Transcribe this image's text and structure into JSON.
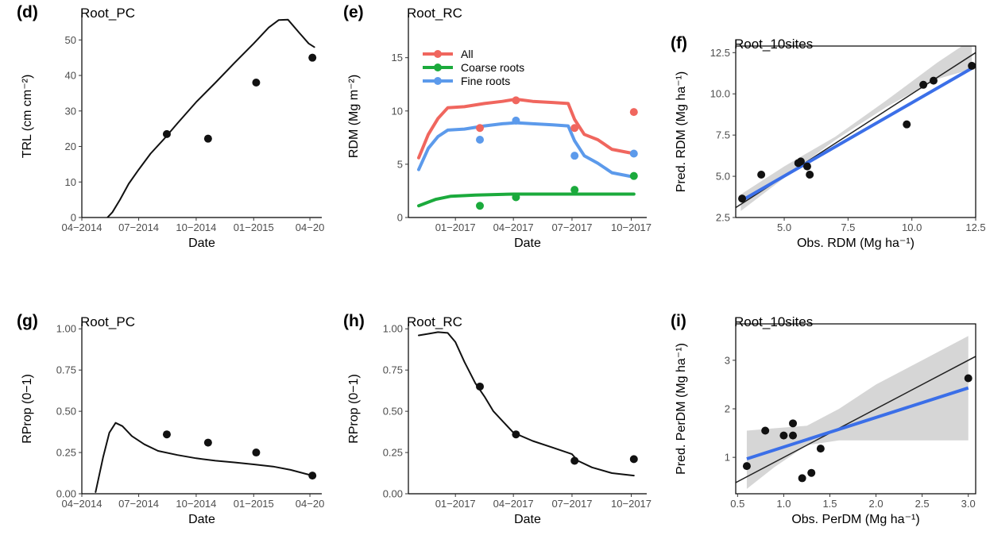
{
  "colors": {
    "all": "#F0665E",
    "coarse": "#1BAA3C",
    "fine": "#5C9AEB",
    "fit": "#3B6FE8",
    "ribbon": "#D6D6D6",
    "model": "#111111",
    "obs": "#111111"
  },
  "chart_data": [
    {
      "id": "d",
      "panel_label": "(d)",
      "title": "Root_PC",
      "type": "line",
      "xlabel": "Date",
      "ylabel": "TRL (cm cm⁻²)",
      "xaxis": "date",
      "xlim": [
        "2014-04-01",
        "2015-04-20"
      ],
      "ylim": [
        0,
        57
      ],
      "x_ticks": [
        {
          "value": "2014-04-01",
          "label": "04−2014"
        },
        {
          "value": "2014-07-01",
          "label": "07−2014"
        },
        {
          "value": "2014-10-01",
          "label": "10−2014"
        },
        {
          "value": "2015-01-01",
          "label": "01−2015"
        },
        {
          "value": "2015-04-01",
          "label": "04−20"
        }
      ],
      "y_ticks": [
        0,
        10,
        20,
        30,
        40,
        50
      ],
      "series": [
        {
          "kind": "line",
          "color_key": "model",
          "points": [
            [
              "2014-05-12",
              0
            ],
            [
              "2014-05-20",
              1.5
            ],
            [
              "2014-06-01",
              5
            ],
            [
              "2014-06-15",
              9.5
            ],
            [
              "2014-07-01",
              13.5
            ],
            [
              "2014-07-20",
              18
            ],
            [
              "2014-08-10",
              22
            ],
            [
              "2014-09-01",
              26.5
            ],
            [
              "2014-10-01",
              32.5
            ],
            [
              "2014-11-01",
              38
            ],
            [
              "2014-12-01",
              43.5
            ],
            [
              "2015-01-01",
              49
            ],
            [
              "2015-01-25",
              53.5
            ],
            [
              "2015-02-10",
              55.6
            ],
            [
              "2015-02-25",
              55.7
            ],
            [
              "2015-03-15",
              52
            ],
            [
              "2015-03-30",
              49
            ],
            [
              "2015-04-08",
              48
            ]
          ]
        },
        {
          "kind": "points",
          "color_key": "obs",
          "points": [
            [
              "2014-08-15",
              23.5
            ],
            [
              "2014-10-20",
              22.2
            ],
            [
              "2015-01-05",
              38
            ],
            [
              "2015-04-05",
              45
            ]
          ]
        }
      ]
    },
    {
      "id": "e",
      "panel_label": "(e)",
      "title": "Root_RC",
      "type": "line",
      "xlabel": "Date",
      "ylabel": "RDM (Mg m⁻²)",
      "xaxis": "date",
      "xlim": [
        "2016-10-20",
        "2017-10-25"
      ],
      "ylim": [
        0,
        19
      ],
      "x_ticks": [
        {
          "value": "2017-01-01",
          "label": "01−2017"
        },
        {
          "value": "2017-04-01",
          "label": "04−2017"
        },
        {
          "value": "2017-07-01",
          "label": "07−2017"
        },
        {
          "value": "2017-10-01",
          "label": "10−2017"
        }
      ],
      "y_ticks": [
        0,
        5,
        10,
        15
      ],
      "legend": [
        {
          "name": "All",
          "color_key": "all"
        },
        {
          "name": "Coarse roots",
          "color_key": "coarse"
        },
        {
          "name": "Fine roots",
          "color_key": "fine"
        }
      ],
      "series": [
        {
          "kind": "line",
          "color_key": "all",
          "width": 4,
          "points": [
            [
              "2016-11-05",
              5.6
            ],
            [
              "2016-11-20",
              7.8
            ],
            [
              "2016-12-05",
              9.3
            ],
            [
              "2016-12-20",
              10.3
            ],
            [
              "2017-01-15",
              10.4
            ],
            [
              "2017-02-15",
              10.7
            ],
            [
              "2017-03-15",
              10.9
            ],
            [
              "2017-04-05",
              11.1
            ],
            [
              "2017-05-01",
              10.9
            ],
            [
              "2017-06-01",
              10.8
            ],
            [
              "2017-06-25",
              10.7
            ],
            [
              "2017-07-05",
              9.2
            ],
            [
              "2017-07-20",
              7.8
            ],
            [
              "2017-08-10",
              7.3
            ],
            [
              "2017-09-01",
              6.4
            ],
            [
              "2017-10-05",
              6
            ]
          ]
        },
        {
          "kind": "line",
          "color_key": "fine",
          "width": 4,
          "points": [
            [
              "2016-11-05",
              4.5
            ],
            [
              "2016-11-20",
              6.5
            ],
            [
              "2016-12-05",
              7.6
            ],
            [
              "2016-12-20",
              8.2
            ],
            [
              "2017-01-15",
              8.3
            ],
            [
              "2017-02-15",
              8.6
            ],
            [
              "2017-03-15",
              8.8
            ],
            [
              "2017-04-05",
              8.9
            ],
            [
              "2017-05-01",
              8.8
            ],
            [
              "2017-06-01",
              8.7
            ],
            [
              "2017-06-25",
              8.6
            ],
            [
              "2017-07-05",
              7.2
            ],
            [
              "2017-07-20",
              5.8
            ],
            [
              "2017-08-10",
              5.1
            ],
            [
              "2017-09-01",
              4.2
            ],
            [
              "2017-10-05",
              3.8
            ]
          ]
        },
        {
          "kind": "line",
          "color_key": "coarse",
          "width": 4,
          "points": [
            [
              "2016-11-05",
              1.1
            ],
            [
              "2016-12-01",
              1.7
            ],
            [
              "2016-12-25",
              2.0
            ],
            [
              "2017-02-01",
              2.1
            ],
            [
              "2017-04-01",
              2.2
            ],
            [
              "2017-07-01",
              2.2
            ],
            [
              "2017-10-05",
              2.2
            ]
          ]
        },
        {
          "kind": "points",
          "color_key": "all",
          "points": [
            [
              "2017-02-08",
              8.4
            ],
            [
              "2017-04-05",
              11
            ],
            [
              "2017-07-05",
              8.4
            ],
            [
              "2017-10-05",
              9.9
            ]
          ]
        },
        {
          "kind": "points",
          "color_key": "fine",
          "points": [
            [
              "2017-02-08",
              7.3
            ],
            [
              "2017-04-05",
              9.1
            ],
            [
              "2017-07-05",
              5.8
            ],
            [
              "2017-10-05",
              6
            ]
          ]
        },
        {
          "kind": "points",
          "color_key": "coarse",
          "points": [
            [
              "2017-02-08",
              1.1
            ],
            [
              "2017-04-05",
              1.9
            ],
            [
              "2017-07-05",
              2.6
            ],
            [
              "2017-10-05",
              3.9
            ]
          ]
        }
      ]
    },
    {
      "id": "f",
      "panel_label": "(f)",
      "title": "Root_10sites",
      "type": "scatter",
      "xlabel": "Obs. RDM (Mg ha⁻¹)",
      "ylabel": "Pred. RDM (Mg ha⁻¹)",
      "xaxis": "num",
      "xlim": [
        3.1,
        12.5
      ],
      "ylim": [
        2.5,
        12.9
      ],
      "x_ticks": [
        {
          "value": 5,
          "label": "5.0"
        },
        {
          "value": 7.5,
          "label": "7.5"
        },
        {
          "value": 10,
          "label": "10.0"
        },
        {
          "value": 12.5,
          "label": "12.5"
        }
      ],
      "y_ticks": [
        {
          "value": 2.5,
          "label": "2.5"
        },
        {
          "value": 5,
          "label": "5.0"
        },
        {
          "value": 7.5,
          "label": "7.5"
        },
        {
          "value": 10,
          "label": "10.0"
        },
        {
          "value": 12.5,
          "label": "12.5"
        }
      ],
      "ribbon": [
        [
          3.3,
          3.9,
          2.9
        ],
        [
          5.0,
          5.6,
          4.9
        ],
        [
          7.0,
          7.4,
          7.2
        ],
        [
          9.0,
          9.6,
          9.2
        ],
        [
          11.0,
          11.9,
          10.9
        ],
        [
          12.35,
          13.3,
          11.5
        ]
      ],
      "reference_line": [
        [
          3.1,
          3.1
        ],
        [
          12.5,
          12.5
        ]
      ],
      "fit_line": [
        [
          3.3,
          3.5
        ],
        [
          12.35,
          11.55
        ]
      ],
      "points": [
        [
          3.35,
          3.65
        ],
        [
          4.1,
          5.1
        ],
        [
          5.55,
          5.8
        ],
        [
          5.65,
          5.9
        ],
        [
          5.9,
          5.6
        ],
        [
          6.0,
          5.1
        ],
        [
          9.8,
          8.15
        ],
        [
          10.45,
          10.55
        ],
        [
          10.85,
          10.8
        ],
        [
          12.35,
          11.7
        ]
      ]
    },
    {
      "id": "g",
      "panel_label": "(g)",
      "title": "Root_PC",
      "type": "line",
      "xlabel": "Date",
      "ylabel": "RProp (0−1)",
      "xaxis": "date",
      "xlim": [
        "2014-04-01",
        "2015-04-20"
      ],
      "ylim": [
        0,
        1.03
      ],
      "x_ticks": [
        {
          "value": "2014-04-01",
          "label": "04−2014"
        },
        {
          "value": "2014-07-01",
          "label": "07−2014"
        },
        {
          "value": "2014-10-01",
          "label": "10−2014"
        },
        {
          "value": "2015-01-01",
          "label": "01−2015"
        },
        {
          "value": "2015-04-01",
          "label": "04−20"
        }
      ],
      "y_ticks": [
        {
          "value": 0,
          "label": "0.00"
        },
        {
          "value": 0.25,
          "label": "0.25"
        },
        {
          "value": 0.5,
          "label": "0.50"
        },
        {
          "value": 0.75,
          "label": "0.75"
        },
        {
          "value": 1,
          "label": "1.00"
        }
      ],
      "series": [
        {
          "kind": "line",
          "color_key": "model",
          "points": [
            [
              "2014-04-23",
              0.01
            ],
            [
              "2014-05-05",
              0.22
            ],
            [
              "2014-05-15",
              0.37
            ],
            [
              "2014-05-25",
              0.43
            ],
            [
              "2014-06-05",
              0.41
            ],
            [
              "2014-06-20",
              0.35
            ],
            [
              "2014-07-10",
              0.3
            ],
            [
              "2014-08-01",
              0.26
            ],
            [
              "2014-09-01",
              0.235
            ],
            [
              "2014-10-01",
              0.215
            ],
            [
              "2014-11-01",
              0.2
            ],
            [
              "2014-12-01",
              0.19
            ],
            [
              "2015-01-01",
              0.178
            ],
            [
              "2015-02-01",
              0.165
            ],
            [
              "2015-03-01",
              0.145
            ],
            [
              "2015-04-05",
              0.11
            ]
          ]
        },
        {
          "kind": "points",
          "color_key": "obs",
          "points": [
            [
              "2014-08-15",
              0.36
            ],
            [
              "2014-10-20",
              0.31
            ],
            [
              "2015-01-05",
              0.25
            ],
            [
              "2015-04-05",
              0.11
            ]
          ]
        }
      ]
    },
    {
      "id": "h",
      "panel_label": "(h)",
      "title": "Root_RC",
      "type": "line",
      "xlabel": "Date",
      "ylabel": "RProp (0−1)",
      "xaxis": "date",
      "xlim": [
        "2016-10-20",
        "2017-10-25"
      ],
      "ylim": [
        0,
        1.03
      ],
      "x_ticks": [
        {
          "value": "2017-01-01",
          "label": "01−2017"
        },
        {
          "value": "2017-04-01",
          "label": "04−2017"
        },
        {
          "value": "2017-07-01",
          "label": "07−2017"
        },
        {
          "value": "2017-10-01",
          "label": "10−2017"
        }
      ],
      "y_ticks": [
        {
          "value": 0,
          "label": "0.00"
        },
        {
          "value": 0.25,
          "label": "0.25"
        },
        {
          "value": 0.5,
          "label": "0.50"
        },
        {
          "value": 0.75,
          "label": "0.75"
        },
        {
          "value": 1,
          "label": "1.00"
        }
      ],
      "series": [
        {
          "kind": "line",
          "color_key": "model",
          "points": [
            [
              "2016-11-05",
              0.96
            ],
            [
              "2016-11-20",
              0.97
            ],
            [
              "2016-12-05",
              0.98
            ],
            [
              "2016-12-20",
              0.975
            ],
            [
              "2017-01-01",
              0.92
            ],
            [
              "2017-01-15",
              0.8
            ],
            [
              "2017-02-01",
              0.67
            ],
            [
              "2017-02-15",
              0.59
            ],
            [
              "2017-03-01",
              0.5
            ],
            [
              "2017-04-01",
              0.37
            ],
            [
              "2017-05-01",
              0.32
            ],
            [
              "2017-06-01",
              0.28
            ],
            [
              "2017-07-01",
              0.24
            ],
            [
              "2017-07-10",
              0.2
            ],
            [
              "2017-08-01",
              0.16
            ],
            [
              "2017-09-01",
              0.125
            ],
            [
              "2017-10-05",
              0.11
            ]
          ]
        },
        {
          "kind": "points",
          "color_key": "obs",
          "points": [
            [
              "2017-02-08",
              0.65
            ],
            [
              "2017-04-05",
              0.36
            ],
            [
              "2017-07-05",
              0.2
            ],
            [
              "2017-10-05",
              0.21
            ]
          ]
        }
      ]
    },
    {
      "id": "i",
      "panel_label": "(i)",
      "title": "Root_10sites",
      "type": "scatter",
      "xlabel": "Obs. PerDM (Mg ha⁻¹)",
      "ylabel": "Pred. PerDM (Mg ha⁻¹)",
      "xaxis": "num",
      "xlim": [
        0.48,
        3.08
      ],
      "ylim": [
        0.25,
        3.75
      ],
      "x_ticks": [
        {
          "value": 0.5,
          "label": "0.5"
        },
        {
          "value": 1.0,
          "label": "1.0"
        },
        {
          "value": 1.5,
          "label": "1.5"
        },
        {
          "value": 2.0,
          "label": "2.0"
        },
        {
          "value": 2.5,
          "label": "2.5"
        },
        {
          "value": 3.0,
          "label": "3.0"
        }
      ],
      "y_ticks": [
        {
          "value": 1,
          "label": "1"
        },
        {
          "value": 2,
          "label": "2"
        },
        {
          "value": 3,
          "label": "3"
        }
      ],
      "ribbon": [
        [
          0.6,
          1.55,
          0.35
        ],
        [
          0.9,
          1.6,
          0.8
        ],
        [
          1.25,
          1.65,
          1.25
        ],
        [
          1.6,
          2.0,
          1.35
        ],
        [
          2.0,
          2.5,
          1.35
        ],
        [
          2.5,
          3.0,
          1.35
        ],
        [
          3.0,
          3.5,
          1.35
        ]
      ],
      "reference_line": [
        [
          0.48,
          0.48
        ],
        [
          3.08,
          3.08
        ]
      ],
      "fit_line": [
        [
          0.6,
          0.97
        ],
        [
          3.0,
          2.43
        ]
      ],
      "points": [
        [
          0.6,
          0.82
        ],
        [
          0.8,
          1.55
        ],
        [
          1.0,
          1.45
        ],
        [
          1.1,
          1.45
        ],
        [
          1.1,
          1.7
        ],
        [
          1.2,
          0.57
        ],
        [
          1.3,
          0.68
        ],
        [
          1.4,
          1.18
        ],
        [
          3.0,
          2.63
        ]
      ]
    }
  ]
}
